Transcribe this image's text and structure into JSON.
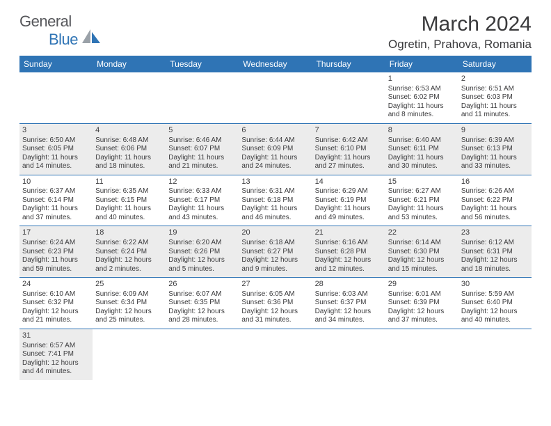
{
  "logo": {
    "text1": "General",
    "text2": "Blue"
  },
  "title": "March 2024",
  "location": "Ogretin, Prahova, Romania",
  "colors": {
    "header_bg": "#2f74b5",
    "header_text": "#ffffff",
    "shade_bg": "#ececec",
    "border": "#2f74b5",
    "text": "#3a3a3c",
    "logo_gray": "#55565a",
    "logo_blue": "#2f74b5"
  },
  "weekdays": [
    "Sunday",
    "Monday",
    "Tuesday",
    "Wednesday",
    "Thursday",
    "Friday",
    "Saturday"
  ],
  "weeks": [
    [
      {
        "empty": true
      },
      {
        "empty": true
      },
      {
        "empty": true
      },
      {
        "empty": true
      },
      {
        "empty": true
      },
      {
        "day": "1",
        "sunrise": "Sunrise: 6:53 AM",
        "sunset": "Sunset: 6:02 PM",
        "daylight": "Daylight: 11 hours and 8 minutes.",
        "shade": false
      },
      {
        "day": "2",
        "sunrise": "Sunrise: 6:51 AM",
        "sunset": "Sunset: 6:03 PM",
        "daylight": "Daylight: 11 hours and 11 minutes.",
        "shade": false
      }
    ],
    [
      {
        "day": "3",
        "sunrise": "Sunrise: 6:50 AM",
        "sunset": "Sunset: 6:05 PM",
        "daylight": "Daylight: 11 hours and 14 minutes.",
        "shade": true
      },
      {
        "day": "4",
        "sunrise": "Sunrise: 6:48 AM",
        "sunset": "Sunset: 6:06 PM",
        "daylight": "Daylight: 11 hours and 18 minutes.",
        "shade": true
      },
      {
        "day": "5",
        "sunrise": "Sunrise: 6:46 AM",
        "sunset": "Sunset: 6:07 PM",
        "daylight": "Daylight: 11 hours and 21 minutes.",
        "shade": true
      },
      {
        "day": "6",
        "sunrise": "Sunrise: 6:44 AM",
        "sunset": "Sunset: 6:09 PM",
        "daylight": "Daylight: 11 hours and 24 minutes.",
        "shade": true
      },
      {
        "day": "7",
        "sunrise": "Sunrise: 6:42 AM",
        "sunset": "Sunset: 6:10 PM",
        "daylight": "Daylight: 11 hours and 27 minutes.",
        "shade": true
      },
      {
        "day": "8",
        "sunrise": "Sunrise: 6:40 AM",
        "sunset": "Sunset: 6:11 PM",
        "daylight": "Daylight: 11 hours and 30 minutes.",
        "shade": true
      },
      {
        "day": "9",
        "sunrise": "Sunrise: 6:39 AM",
        "sunset": "Sunset: 6:13 PM",
        "daylight": "Daylight: 11 hours and 33 minutes.",
        "shade": true
      }
    ],
    [
      {
        "day": "10",
        "sunrise": "Sunrise: 6:37 AM",
        "sunset": "Sunset: 6:14 PM",
        "daylight": "Daylight: 11 hours and 37 minutes.",
        "shade": false
      },
      {
        "day": "11",
        "sunrise": "Sunrise: 6:35 AM",
        "sunset": "Sunset: 6:15 PM",
        "daylight": "Daylight: 11 hours and 40 minutes.",
        "shade": false
      },
      {
        "day": "12",
        "sunrise": "Sunrise: 6:33 AM",
        "sunset": "Sunset: 6:17 PM",
        "daylight": "Daylight: 11 hours and 43 minutes.",
        "shade": false
      },
      {
        "day": "13",
        "sunrise": "Sunrise: 6:31 AM",
        "sunset": "Sunset: 6:18 PM",
        "daylight": "Daylight: 11 hours and 46 minutes.",
        "shade": false
      },
      {
        "day": "14",
        "sunrise": "Sunrise: 6:29 AM",
        "sunset": "Sunset: 6:19 PM",
        "daylight": "Daylight: 11 hours and 49 minutes.",
        "shade": false
      },
      {
        "day": "15",
        "sunrise": "Sunrise: 6:27 AM",
        "sunset": "Sunset: 6:21 PM",
        "daylight": "Daylight: 11 hours and 53 minutes.",
        "shade": false
      },
      {
        "day": "16",
        "sunrise": "Sunrise: 6:26 AM",
        "sunset": "Sunset: 6:22 PM",
        "daylight": "Daylight: 11 hours and 56 minutes.",
        "shade": false
      }
    ],
    [
      {
        "day": "17",
        "sunrise": "Sunrise: 6:24 AM",
        "sunset": "Sunset: 6:23 PM",
        "daylight": "Daylight: 11 hours and 59 minutes.",
        "shade": true
      },
      {
        "day": "18",
        "sunrise": "Sunrise: 6:22 AM",
        "sunset": "Sunset: 6:24 PM",
        "daylight": "Daylight: 12 hours and 2 minutes.",
        "shade": true
      },
      {
        "day": "19",
        "sunrise": "Sunrise: 6:20 AM",
        "sunset": "Sunset: 6:26 PM",
        "daylight": "Daylight: 12 hours and 5 minutes.",
        "shade": true
      },
      {
        "day": "20",
        "sunrise": "Sunrise: 6:18 AM",
        "sunset": "Sunset: 6:27 PM",
        "daylight": "Daylight: 12 hours and 9 minutes.",
        "shade": true
      },
      {
        "day": "21",
        "sunrise": "Sunrise: 6:16 AM",
        "sunset": "Sunset: 6:28 PM",
        "daylight": "Daylight: 12 hours and 12 minutes.",
        "shade": true
      },
      {
        "day": "22",
        "sunrise": "Sunrise: 6:14 AM",
        "sunset": "Sunset: 6:30 PM",
        "daylight": "Daylight: 12 hours and 15 minutes.",
        "shade": true
      },
      {
        "day": "23",
        "sunrise": "Sunrise: 6:12 AM",
        "sunset": "Sunset: 6:31 PM",
        "daylight": "Daylight: 12 hours and 18 minutes.",
        "shade": true
      }
    ],
    [
      {
        "day": "24",
        "sunrise": "Sunrise: 6:10 AM",
        "sunset": "Sunset: 6:32 PM",
        "daylight": "Daylight: 12 hours and 21 minutes.",
        "shade": false
      },
      {
        "day": "25",
        "sunrise": "Sunrise: 6:09 AM",
        "sunset": "Sunset: 6:34 PM",
        "daylight": "Daylight: 12 hours and 25 minutes.",
        "shade": false
      },
      {
        "day": "26",
        "sunrise": "Sunrise: 6:07 AM",
        "sunset": "Sunset: 6:35 PM",
        "daylight": "Daylight: 12 hours and 28 minutes.",
        "shade": false
      },
      {
        "day": "27",
        "sunrise": "Sunrise: 6:05 AM",
        "sunset": "Sunset: 6:36 PM",
        "daylight": "Daylight: 12 hours and 31 minutes.",
        "shade": false
      },
      {
        "day": "28",
        "sunrise": "Sunrise: 6:03 AM",
        "sunset": "Sunset: 6:37 PM",
        "daylight": "Daylight: 12 hours and 34 minutes.",
        "shade": false
      },
      {
        "day": "29",
        "sunrise": "Sunrise: 6:01 AM",
        "sunset": "Sunset: 6:39 PM",
        "daylight": "Daylight: 12 hours and 37 minutes.",
        "shade": false
      },
      {
        "day": "30",
        "sunrise": "Sunrise: 5:59 AM",
        "sunset": "Sunset: 6:40 PM",
        "daylight": "Daylight: 12 hours and 40 minutes.",
        "shade": false
      }
    ],
    [
      {
        "day": "31",
        "sunrise": "Sunrise: 6:57 AM",
        "sunset": "Sunset: 7:41 PM",
        "daylight": "Daylight: 12 hours and 44 minutes.",
        "shade": true
      },
      {
        "empty": true
      },
      {
        "empty": true
      },
      {
        "empty": true
      },
      {
        "empty": true
      },
      {
        "empty": true
      },
      {
        "empty": true
      }
    ]
  ]
}
